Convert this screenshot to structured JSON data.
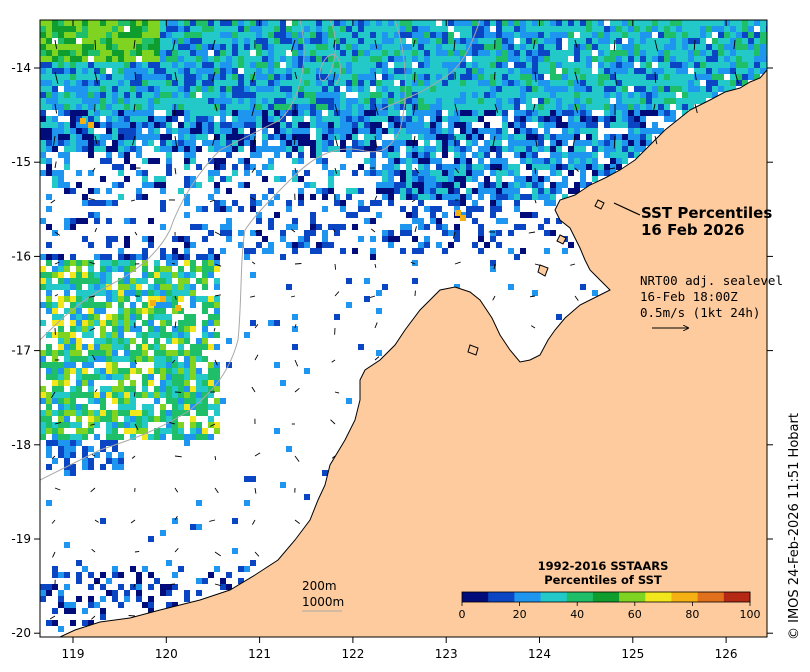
{
  "title": {
    "line1": "SST Percentiles",
    "line2": "16 Feb 2026"
  },
  "current_info": {
    "line1": "NRT00 adj. sealevel",
    "line2": "16-Feb 18:00Z",
    "line3": "0.5m/s (1kt 24h)"
  },
  "isobaths": {
    "label1": "200m",
    "label2": "1000m"
  },
  "colorbar": {
    "title1": "1992-2016 SSTAARS",
    "title2": "Percentiles of SST",
    "colors": [
      "#000c7a",
      "#0a46c4",
      "#1e96f0",
      "#23c8c8",
      "#1fbf6a",
      "#0f9e2e",
      "#7ed420",
      "#f2e61c",
      "#f5b014",
      "#e0701c",
      "#b42814"
    ],
    "ticks": [
      "0",
      "20",
      "40",
      "60",
      "80",
      "100"
    ]
  },
  "axes": {
    "x_ticks": [
      "119",
      "120",
      "121",
      "122",
      "123",
      "124",
      "125",
      "126"
    ],
    "y_ticks": [
      "-14",
      "-15",
      "-16",
      "-17",
      "-18",
      "-19",
      "-20"
    ]
  },
  "credit": "© IMOS 24-Feb-2026 11:51 Hobart",
  "colors": {
    "land": "#fdcb9e",
    "ocean_nodata": "#ffffff",
    "isobath": "#a8a8a8"
  }
}
